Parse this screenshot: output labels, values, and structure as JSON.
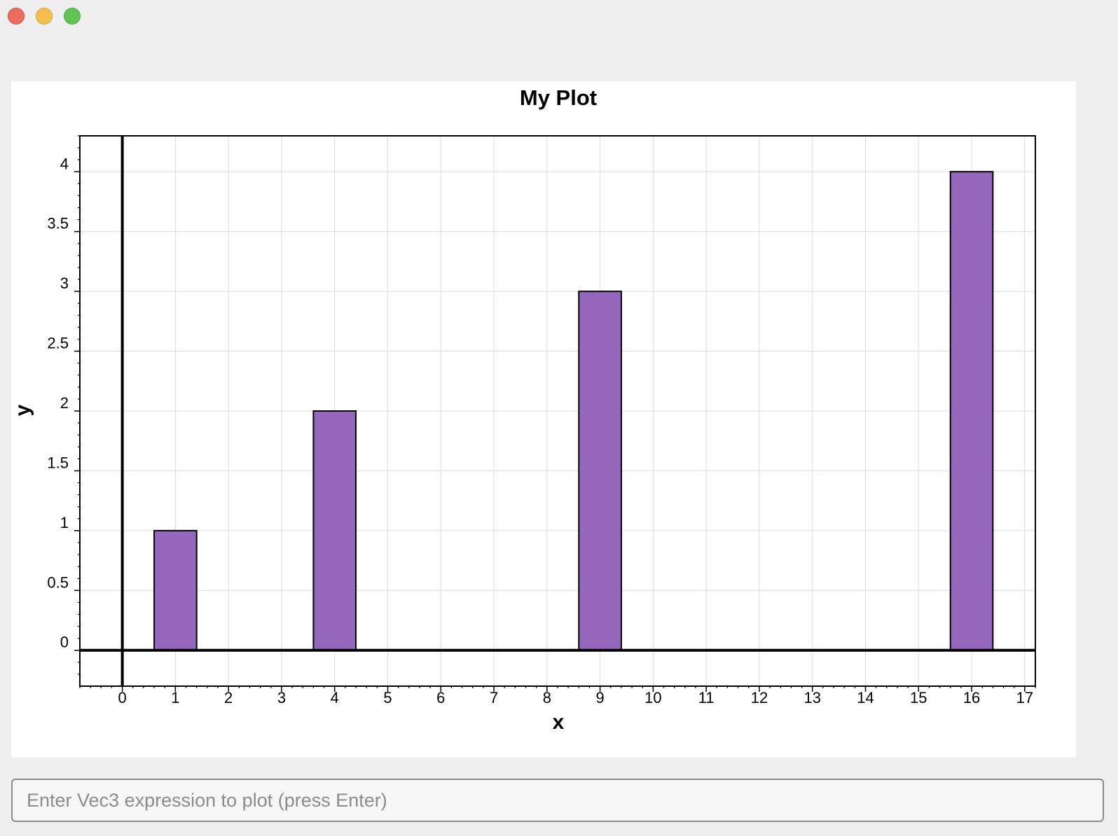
{
  "window": {
    "controls": [
      "close",
      "minimize",
      "maximize"
    ]
  },
  "input": {
    "placeholder": "Enter Vec3 expression to plot (press Enter)",
    "value": ""
  },
  "chart_data": {
    "type": "bar",
    "title": "My Plot",
    "xlabel": "x",
    "ylabel": "y",
    "x": [
      1,
      4,
      9,
      16
    ],
    "values": [
      1,
      2,
      3,
      4
    ],
    "bar_width": 0.8,
    "xlim": [
      -0.8,
      17.2
    ],
    "ylim": [
      -0.3,
      4.3
    ],
    "xticks": [
      0,
      1,
      2,
      3,
      4,
      5,
      6,
      7,
      8,
      9,
      10,
      11,
      12,
      13,
      14,
      15,
      16,
      17
    ],
    "yticks": [
      0,
      0.5,
      1,
      1.5,
      2,
      2.5,
      3,
      3.5,
      4
    ],
    "xtick_labels": [
      "0",
      "1",
      "2",
      "3",
      "4",
      "5",
      "6",
      "7",
      "8",
      "9",
      "10",
      "11",
      "12",
      "13",
      "14",
      "15",
      "16",
      "17"
    ],
    "ytick_labels": [
      "0",
      "0.5",
      "1",
      "1.5",
      "2",
      "2.5",
      "3",
      "3.5",
      "4"
    ],
    "grid": true,
    "bar_color": "#9467bd",
    "bar_edge_color": "#000000"
  }
}
